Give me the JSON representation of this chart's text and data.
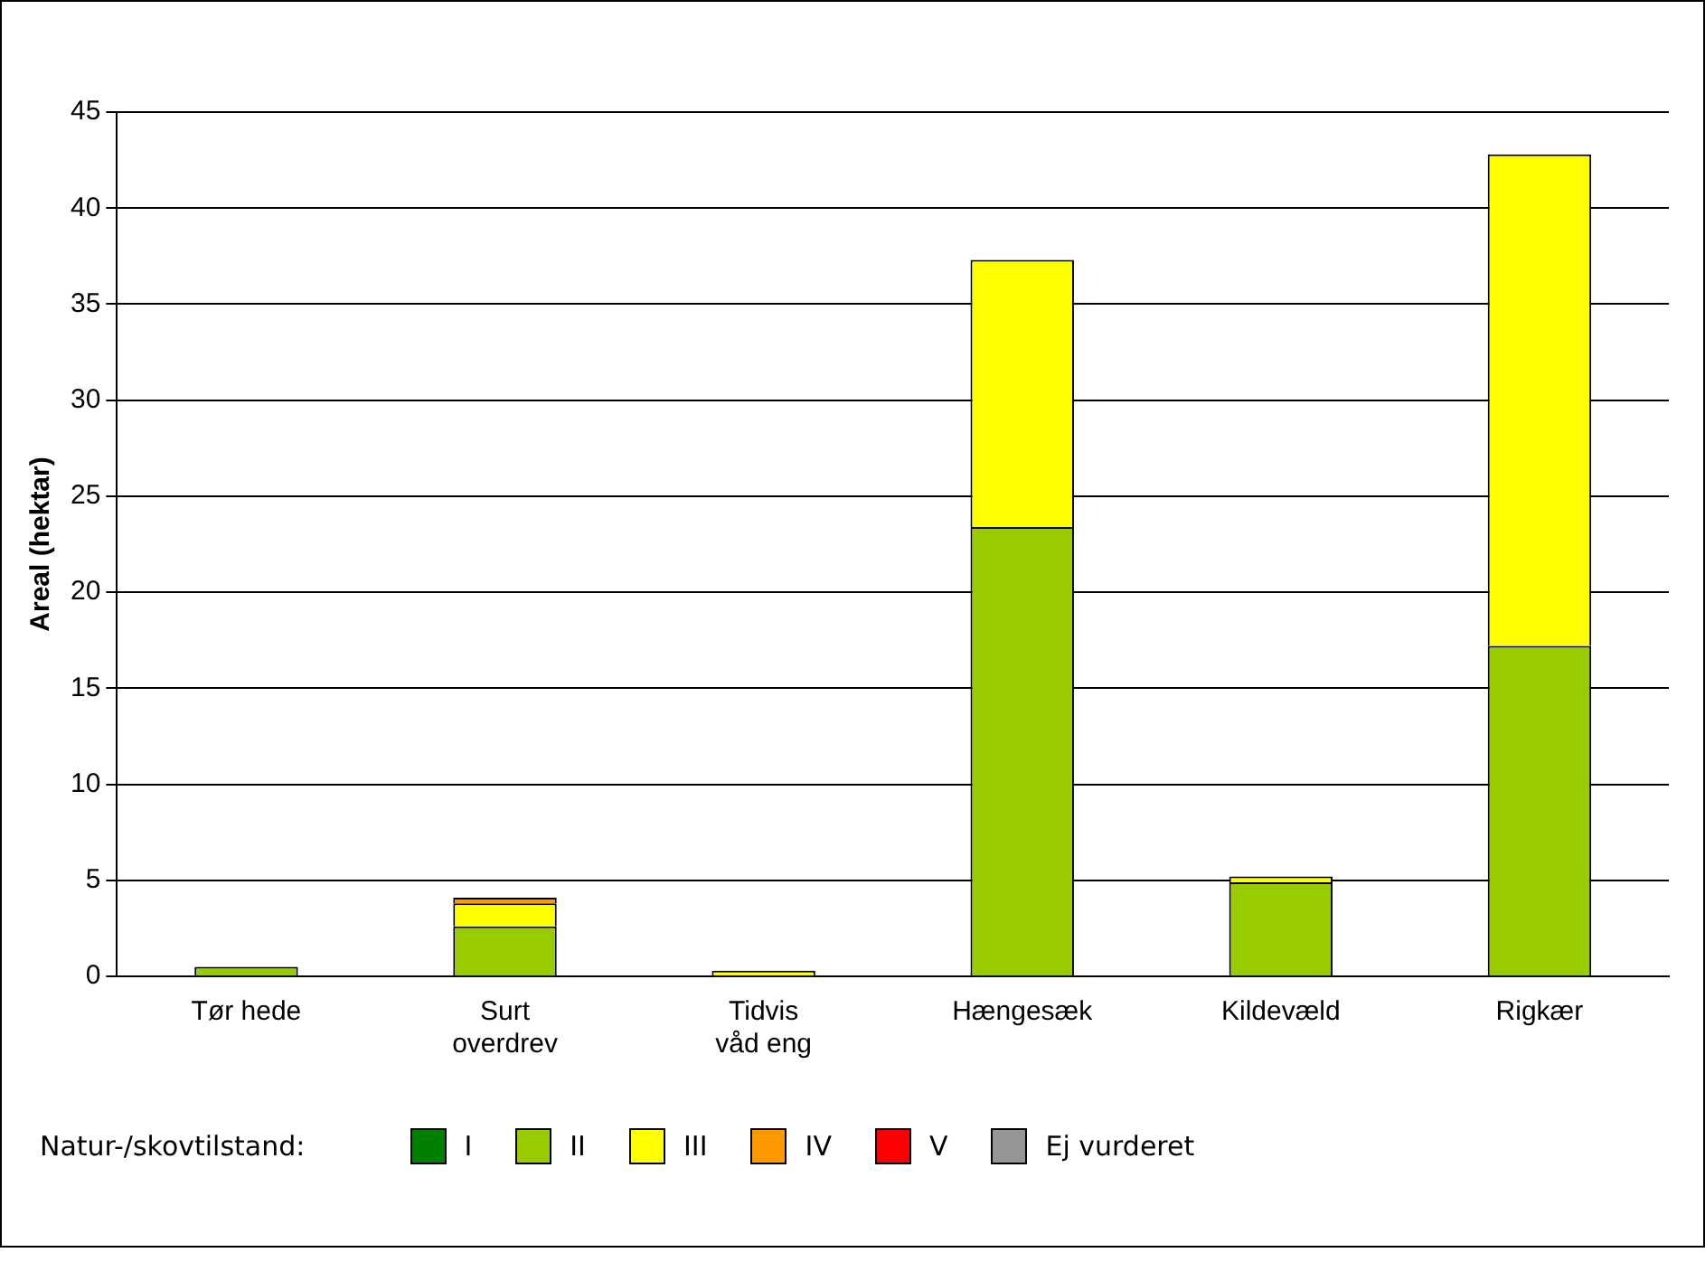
{
  "chart_data": {
    "type": "bar",
    "stacked": true,
    "ylabel": "Areal (hektar)",
    "legend_title": "Natur-/skovtilstand:",
    "legend": "bottom",
    "grid": "y",
    "categories": [
      "Tør hede",
      "Surt overdrev",
      "Tidvis våd eng",
      "Hængesæk",
      "Kildevæld",
      "Rigkær"
    ],
    "ylim": [
      0,
      45
    ],
    "yticks": [
      0,
      5,
      10,
      15,
      20,
      25,
      30,
      35,
      40,
      45
    ],
    "series": [
      {
        "name": "I",
        "color": "#008000",
        "values": [
          null,
          null,
          null,
          null,
          null,
          null
        ]
      },
      {
        "name": "II",
        "color": "#99cc00",
        "values": [
          0.5,
          2.6,
          null,
          23.4,
          4.9,
          17.2
        ]
      },
      {
        "name": "III",
        "color": "#ffff00",
        "values": [
          null,
          1.2,
          0.3,
          13.9,
          0.3,
          25.6
        ]
      },
      {
        "name": "IV",
        "color": "#ff9900",
        "values": [
          null,
          0.3,
          null,
          null,
          null,
          null
        ]
      },
      {
        "name": "V",
        "color": "#ff0000",
        "values": [
          null,
          null,
          null,
          null,
          null,
          null
        ]
      },
      {
        "name": "Ej vurderet",
        "color": "#969696",
        "values": [
          null,
          null,
          null,
          null,
          null,
          null
        ]
      }
    ]
  }
}
